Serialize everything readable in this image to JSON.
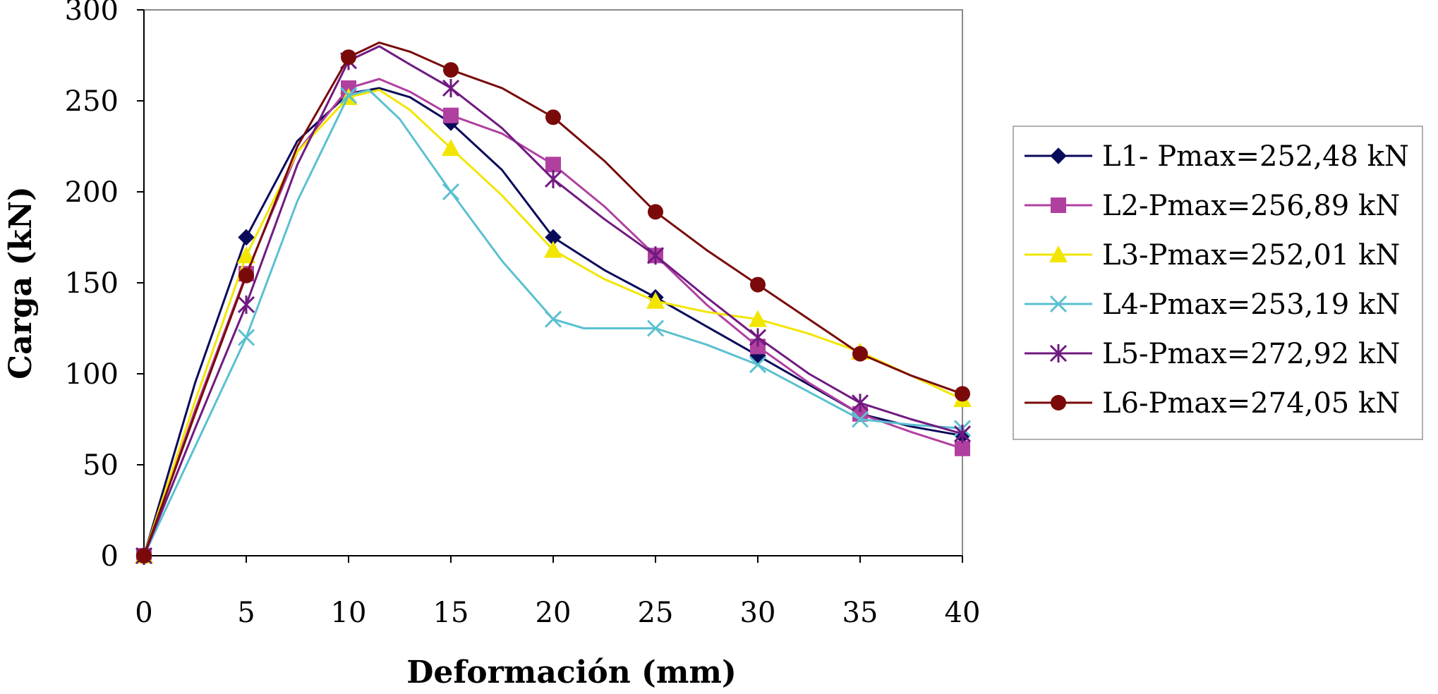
{
  "chart_data": {
    "type": "line",
    "xlabel": "Deformación (mm)",
    "ylabel": "Carga (kN)",
    "xlim": [
      0,
      40
    ],
    "ylim": [
      0,
      300
    ],
    "xticks": [
      "0",
      "5",
      "10",
      "15",
      "20",
      "25",
      "30",
      "35",
      "40"
    ],
    "yticks": [
      "0",
      "50",
      "100",
      "150",
      "200",
      "250",
      "300"
    ],
    "grid": false,
    "legend_position": "right",
    "series": [
      {
        "name": "L1- Pmax=252,48 kN",
        "color": "#0a0a5a",
        "marker": "diamond",
        "points": [
          [
            0,
            0
          ],
          [
            5,
            175
          ],
          [
            10,
            254
          ],
          [
            15,
            238
          ],
          [
            20,
            175
          ],
          [
            25,
            142
          ],
          [
            30,
            110
          ],
          [
            35,
            78
          ],
          [
            40,
            66
          ]
        ],
        "curve": [
          [
            0,
            0
          ],
          [
            2.5,
            95
          ],
          [
            5,
            175
          ],
          [
            7.5,
            228
          ],
          [
            10,
            254
          ],
          [
            11.5,
            257
          ],
          [
            13,
            252
          ],
          [
            15,
            238
          ],
          [
            17.5,
            212
          ],
          [
            20,
            175
          ],
          [
            22.5,
            157
          ],
          [
            25,
            142
          ],
          [
            27.5,
            126
          ],
          [
            30,
            110
          ],
          [
            32.5,
            94
          ],
          [
            35,
            78
          ],
          [
            37.5,
            71
          ],
          [
            40,
            66
          ]
        ]
      },
      {
        "name": "L2-Pmax=256,89 kN",
        "color": "#b040a0",
        "marker": "square",
        "points": [
          [
            0,
            0
          ],
          [
            5,
            155
          ],
          [
            10,
            257
          ],
          [
            15,
            242
          ],
          [
            20,
            215
          ],
          [
            25,
            165
          ],
          [
            30,
            115
          ],
          [
            35,
            78
          ],
          [
            40,
            59
          ]
        ],
        "curve": [
          [
            0,
            0
          ],
          [
            2.5,
            80
          ],
          [
            5,
            155
          ],
          [
            7.5,
            222
          ],
          [
            10,
            257
          ],
          [
            11.5,
            262
          ],
          [
            13,
            255
          ],
          [
            15,
            242
          ],
          [
            17.5,
            232
          ],
          [
            20,
            215
          ],
          [
            22.5,
            192
          ],
          [
            25,
            165
          ],
          [
            27.5,
            138
          ],
          [
            30,
            115
          ],
          [
            32.5,
            95
          ],
          [
            35,
            78
          ],
          [
            37.5,
            68
          ],
          [
            40,
            59
          ]
        ]
      },
      {
        "name": "L3-Pmax=252,01 kN",
        "color": "#f2e600",
        "marker": "triangle",
        "points": [
          [
            0,
            0
          ],
          [
            5,
            165
          ],
          [
            10,
            252
          ],
          [
            15,
            224
          ],
          [
            20,
            168
          ],
          [
            25,
            140
          ],
          [
            30,
            130
          ],
          [
            35,
            112
          ],
          [
            40,
            86
          ]
        ],
        "curve": [
          [
            0,
            0
          ],
          [
            2.5,
            85
          ],
          [
            5,
            165
          ],
          [
            7.5,
            222
          ],
          [
            10,
            252
          ],
          [
            11.5,
            256
          ],
          [
            13,
            245
          ],
          [
            15,
            224
          ],
          [
            17.5,
            198
          ],
          [
            20,
            168
          ],
          [
            22.5,
            152
          ],
          [
            25,
            140
          ],
          [
            27.5,
            134
          ],
          [
            30,
            130
          ],
          [
            32.5,
            122
          ],
          [
            35,
            112
          ],
          [
            37.5,
            99
          ],
          [
            40,
            86
          ]
        ]
      },
      {
        "name": "L4-Pmax=253,19 kN",
        "color": "#5ac0d0",
        "marker": "x",
        "points": [
          [
            0,
            0
          ],
          [
            5,
            120
          ],
          [
            10,
            253
          ],
          [
            15,
            200
          ],
          [
            20,
            130
          ],
          [
            25,
            125
          ],
          [
            30,
            105
          ],
          [
            35,
            75
          ],
          [
            40,
            70
          ]
        ],
        "curve": [
          [
            0,
            0
          ],
          [
            2.5,
            60
          ],
          [
            5,
            120
          ],
          [
            7.5,
            195
          ],
          [
            10,
            253
          ],
          [
            11,
            256
          ],
          [
            12.5,
            240
          ],
          [
            15,
            200
          ],
          [
            17.5,
            162
          ],
          [
            20,
            130
          ],
          [
            21.5,
            125
          ],
          [
            23,
            125
          ],
          [
            25,
            125
          ],
          [
            27.5,
            116
          ],
          [
            30,
            105
          ],
          [
            32.5,
            90
          ],
          [
            35,
            75
          ],
          [
            37.5,
            72
          ],
          [
            40,
            70
          ]
        ]
      },
      {
        "name": "L5-Pmax=272,92 kN",
        "color": "#701a80",
        "marker": "star",
        "points": [
          [
            0,
            0
          ],
          [
            5,
            138
          ],
          [
            10,
            272
          ],
          [
            15,
            257
          ],
          [
            20,
            207
          ],
          [
            25,
            165
          ],
          [
            30,
            120
          ],
          [
            35,
            84
          ],
          [
            40,
            67
          ]
        ],
        "curve": [
          [
            0,
            0
          ],
          [
            2.5,
            70
          ],
          [
            5,
            138
          ],
          [
            7.5,
            215
          ],
          [
            10,
            272
          ],
          [
            11.5,
            280
          ],
          [
            13,
            270
          ],
          [
            15,
            257
          ],
          [
            17.5,
            235
          ],
          [
            20,
            207
          ],
          [
            22.5,
            185
          ],
          [
            25,
            165
          ],
          [
            27.5,
            142
          ],
          [
            30,
            120
          ],
          [
            32.5,
            100
          ],
          [
            35,
            84
          ],
          [
            37.5,
            75
          ],
          [
            40,
            67
          ]
        ]
      },
      {
        "name": "L6-Pmax=274,05 kN",
        "color": "#7a0a0a",
        "marker": "circle",
        "points": [
          [
            0,
            0
          ],
          [
            5,
            154
          ],
          [
            10,
            274
          ],
          [
            15,
            267
          ],
          [
            20,
            241
          ],
          [
            25,
            189
          ],
          [
            30,
            149
          ],
          [
            35,
            111
          ],
          [
            40,
            89
          ]
        ],
        "curve": [
          [
            0,
            0
          ],
          [
            2.5,
            78
          ],
          [
            5,
            154
          ],
          [
            7.5,
            225
          ],
          [
            10,
            274
          ],
          [
            11.5,
            282
          ],
          [
            13,
            277
          ],
          [
            15,
            267
          ],
          [
            17.5,
            257
          ],
          [
            20,
            241
          ],
          [
            22.5,
            217
          ],
          [
            25,
            189
          ],
          [
            27.5,
            168
          ],
          [
            30,
            149
          ],
          [
            32.5,
            130
          ],
          [
            35,
            111
          ],
          [
            37.5,
            99
          ],
          [
            40,
            89
          ]
        ]
      }
    ]
  }
}
